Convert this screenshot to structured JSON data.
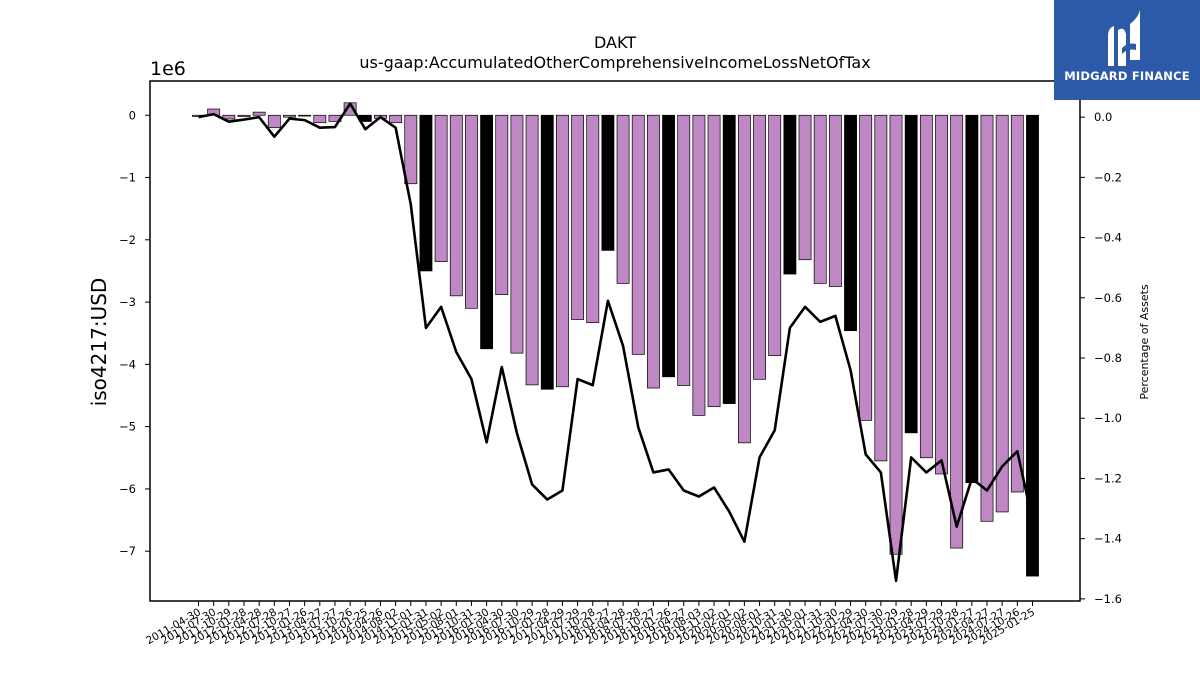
{
  "logo": {
    "text": "MIDGARD FINANCE",
    "background": "#2c5aa8"
  },
  "chart_data": {
    "type": "bar",
    "title": "DAKT",
    "subtitle": "us-gaap:AccumulatedOtherComprehensiveIncomeLossNetOfTax",
    "ylabel": "iso4217:USD",
    "y_multiplier_label": "1e6",
    "y2label": "Percentage of Assets",
    "ylim": [
      -7.8,
      0.55
    ],
    "y2lim": [
      -1.607,
      0.12
    ],
    "yticks": [
      0,
      -1,
      -2,
      -3,
      -4,
      -5,
      -6,
      -7
    ],
    "y2ticks": [
      0.0,
      -0.2,
      -0.4,
      -0.6,
      -0.8,
      -1.0,
      -1.2,
      -1.4,
      -1.6
    ],
    "grid": false,
    "colors": {
      "quarterly": "#bf87c4",
      "annual": "#000000",
      "line": "#000000"
    },
    "categories": [
      "2011-04-30",
      "2011-07-30",
      "2011-10-29",
      "2012-01-28",
      "2012-04-28",
      "2012-07-28",
      "2012-10-27",
      "2013-01-26",
      "2013-04-27",
      "2013-07-27",
      "2013-10-26",
      "2014-01-25",
      "2014-04-26",
      "2014-08-02",
      "2014-11-01",
      "2015-01-31",
      "2015-05-02",
      "2015-08-01",
      "2015-10-31",
      "2016-01-30",
      "2016-04-30",
      "2016-07-30",
      "2016-10-29",
      "2017-01-28",
      "2017-04-29",
      "2017-07-29",
      "2017-10-28",
      "2018-01-27",
      "2018-04-28",
      "2018-07-28",
      "2018-10-27",
      "2019-01-26",
      "2019-04-27",
      "2019-08-03",
      "2019-11-02",
      "2020-02-01",
      "2020-05-02",
      "2020-08-01",
      "2020-10-31",
      "2021-01-30",
      "2021-05-01",
      "2021-07-31",
      "2021-10-30",
      "2022-01-29",
      "2022-04-30",
      "2022-07-30",
      "2022-10-29",
      "2023-01-28",
      "2023-04-29",
      "2023-07-29",
      "2023-10-28",
      "2024-01-27",
      "2024-04-27",
      "2024-07-27",
      "2024-10-26",
      "2025-01-25"
    ],
    "series": [
      {
        "values": [
          -0.02,
          0.1,
          -0.06,
          -0.02,
          0.05,
          -0.2,
          -0.03,
          -0.01,
          -0.12,
          -0.1,
          0.2,
          -0.1,
          -0.05,
          -0.12,
          -1.1,
          -2.5,
          -2.35,
          -2.9,
          -3.1,
          -3.75,
          -2.88,
          -3.82,
          -4.33,
          -4.4,
          -4.36,
          -3.28,
          -3.33,
          -2.17,
          -2.7,
          -3.84,
          -4.38,
          -4.2,
          -4.34,
          -4.82,
          -4.68,
          -4.63,
          -5.26,
          -4.24,
          -3.86,
          -2.55,
          -2.32,
          -2.7,
          -2.75,
          -3.46,
          -4.9,
          -5.55,
          -7.05,
          -5.1,
          -5.5,
          -5.76,
          -6.95,
          -5.9,
          -6.52,
          -6.37,
          -6.05,
          -7.4
        ]
      },
      {
        "values": [
          0.0,
          0.01,
          -0.015,
          -0.008,
          0.0,
          -0.065,
          -0.005,
          -0.01,
          -0.035,
          -0.033,
          0.045,
          -0.04,
          0.0,
          -0.035,
          -0.29,
          -0.7,
          -0.63,
          -0.78,
          -0.87,
          -1.08,
          -0.83,
          -1.05,
          -1.22,
          -1.27,
          -1.24,
          -0.87,
          -0.89,
          -0.61,
          -0.76,
          -1.03,
          -1.18,
          -1.17,
          -1.24,
          -1.26,
          -1.23,
          -1.31,
          -1.41,
          -1.13,
          -1.04,
          -0.7,
          -0.63,
          -0.68,
          -0.66,
          -0.84,
          -1.12,
          -1.18,
          -1.54,
          -1.13,
          -1.18,
          -1.14,
          -1.36,
          -1.2,
          -1.24,
          -1.16,
          -1.11,
          -1.34
        ]
      }
    ],
    "annual_flags": [
      0,
      0,
      0,
      0,
      0,
      0,
      0,
      0,
      0,
      0,
      0,
      1,
      0,
      0,
      0,
      1,
      0,
      0,
      0,
      1,
      0,
      0,
      0,
      1,
      0,
      0,
      0,
      1,
      0,
      0,
      0,
      1,
      0,
      0,
      0,
      1,
      0,
      0,
      0,
      1,
      0,
      0,
      0,
      1,
      0,
      0,
      0,
      1,
      0,
      0,
      0,
      1,
      0,
      0,
      0,
      1
    ]
  }
}
